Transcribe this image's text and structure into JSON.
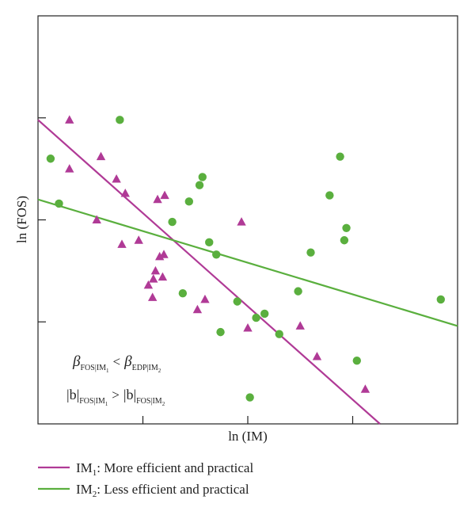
{
  "chart_data": {
    "type": "scatter",
    "xlabel": "ln (IM)",
    "ylabel": "ln (FOS)",
    "xlim": [
      0,
      10
    ],
    "ylim": [
      0,
      10
    ],
    "grid": false,
    "legend_placement": "bottom",
    "series": [
      {
        "name": "IM1: More efficient and practical",
        "name_main": "IM",
        "name_sub": "1",
        "name_rest": ": More efficient and practical",
        "color": "#b03a96",
        "marker": "triangle",
        "points": [
          [
            0.75,
            7.45
          ],
          [
            0.75,
            6.25
          ],
          [
            1.5,
            6.55
          ],
          [
            1.4,
            5.0
          ],
          [
            1.87,
            6.0
          ],
          [
            2.0,
            4.4
          ],
          [
            2.08,
            5.65
          ],
          [
            2.4,
            4.5
          ],
          [
            2.63,
            3.4
          ],
          [
            2.73,
            3.1
          ],
          [
            2.8,
            3.75
          ],
          [
            2.85,
            5.5
          ],
          [
            2.9,
            4.1
          ],
          [
            2.97,
            3.6
          ],
          [
            3.0,
            4.15
          ],
          [
            2.75,
            3.55
          ],
          [
            3.02,
            5.6
          ],
          [
            3.8,
            2.8
          ],
          [
            3.98,
            3.05
          ],
          [
            4.85,
            4.95
          ],
          [
            5.0,
            2.35
          ],
          [
            6.25,
            2.4
          ],
          [
            6.65,
            1.65
          ],
          [
            7.8,
            0.85
          ]
        ],
        "fit": [
          [
            0,
            7.45
          ],
          [
            8.15,
            0.0
          ]
        ]
      },
      {
        "name": "IM2: Less efficient and practical",
        "name_main": "IM",
        "name_sub": "2",
        "name_rest": ": Less efficient and practical",
        "color": "#5aaf3e",
        "marker": "circle",
        "points": [
          [
            0.3,
            6.5
          ],
          [
            0.5,
            5.4
          ],
          [
            1.95,
            7.45
          ],
          [
            3.2,
            4.95
          ],
          [
            3.45,
            3.2
          ],
          [
            3.6,
            5.45
          ],
          [
            3.85,
            5.85
          ],
          [
            3.92,
            6.05
          ],
          [
            4.08,
            4.45
          ],
          [
            4.25,
            4.15
          ],
          [
            4.35,
            2.25
          ],
          [
            4.75,
            3.0
          ],
          [
            5.2,
            2.6
          ],
          [
            5.05,
            0.65
          ],
          [
            5.4,
            2.7
          ],
          [
            5.75,
            2.2
          ],
          [
            6.2,
            3.25
          ],
          [
            6.5,
            4.2
          ],
          [
            6.95,
            5.6
          ],
          [
            7.2,
            6.55
          ],
          [
            7.3,
            4.5
          ],
          [
            7.35,
            4.8
          ],
          [
            7.6,
            1.55
          ],
          [
            9.6,
            3.05
          ]
        ],
        "fit": [
          [
            0,
            5.5
          ],
          [
            10,
            2.4
          ]
        ]
      }
    ],
    "annotations": {
      "line1": {
        "beta1": "β",
        "sub1": "FOS|IM",
        "sub1_idx": "1",
        "op": "<",
        "beta2": "β",
        "sub2": "EDP|IM",
        "sub2_idx": "2"
      },
      "line2": {
        "b1": "|b|",
        "sub1": "FOS|IM",
        "sub1_idx": "1",
        "op": ">",
        "b2": "|b|",
        "sub2": "FOS|IM",
        "sub2_idx": "2"
      }
    }
  }
}
